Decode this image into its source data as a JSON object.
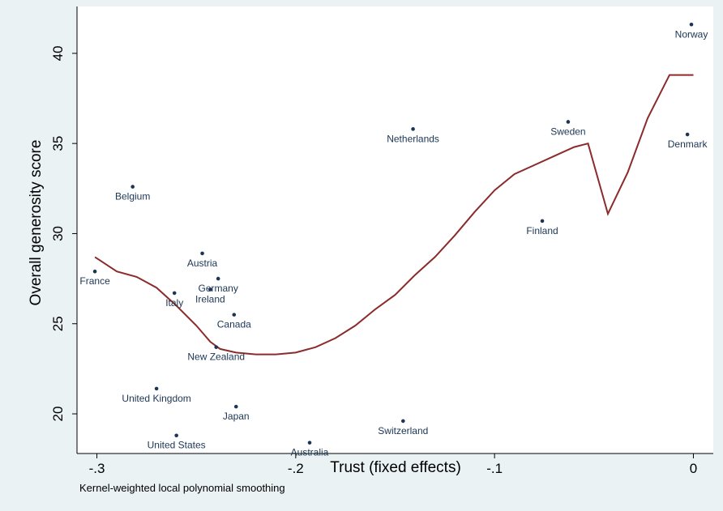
{
  "chart_data": {
    "type": "scatter",
    "xlabel": "Trust (fixed effects)",
    "ylabel": "Overall generosity score",
    "note": "Kernel-weighted local polynomial smoothing",
    "xlim": [
      -0.31,
      0.01
    ],
    "ylim": [
      17.8,
      42.6
    ],
    "xticks": [
      -0.3,
      -0.2,
      -0.1,
      0
    ],
    "xtick_labels": [
      "-.3",
      "-.2",
      "-.1",
      "0"
    ],
    "yticks": [
      20,
      25,
      30,
      35,
      40
    ],
    "ytick_labels": [
      "20",
      "25",
      "30",
      "35",
      "40"
    ],
    "grid": false,
    "colors": {
      "points": "#1b3553",
      "smooth": "#8b2b2b",
      "background": "#eaf2f3",
      "plot": "#ffffff"
    },
    "points": [
      {
        "label": "Norway",
        "x": -0.001,
        "y": 41.6,
        "pos": "below"
      },
      {
        "label": "Sweden",
        "x": -0.063,
        "y": 36.2,
        "pos": "below"
      },
      {
        "label": "Netherlands",
        "x": -0.141,
        "y": 35.8,
        "pos": "below"
      },
      {
        "label": "Denmark",
        "x": -0.003,
        "y": 35.5,
        "pos": "below"
      },
      {
        "label": "Belgium",
        "x": -0.282,
        "y": 32.6,
        "pos": "below"
      },
      {
        "label": "Finland",
        "x": -0.076,
        "y": 30.7,
        "pos": "below"
      },
      {
        "label": "Austria",
        "x": -0.247,
        "y": 28.9,
        "pos": "below"
      },
      {
        "label": "France",
        "x": -0.301,
        "y": 27.9,
        "pos": "below"
      },
      {
        "label": "Germany",
        "x": -0.239,
        "y": 27.5,
        "pos": "below"
      },
      {
        "label": "Ireland",
        "x": -0.243,
        "y": 26.9,
        "pos": "below"
      },
      {
        "label": "Italy",
        "x": -0.261,
        "y": 26.7,
        "pos": "below"
      },
      {
        "label": "Canada",
        "x": -0.231,
        "y": 25.5,
        "pos": "below"
      },
      {
        "label": "New Zealand",
        "x": -0.24,
        "y": 23.7,
        "pos": "below"
      },
      {
        "label": "United Kingdom",
        "x": -0.27,
        "y": 21.4,
        "pos": "below"
      },
      {
        "label": "Japan",
        "x": -0.23,
        "y": 20.4,
        "pos": "below"
      },
      {
        "label": "Switzerland",
        "x": -0.146,
        "y": 19.6,
        "pos": "below"
      },
      {
        "label": "United States",
        "x": -0.26,
        "y": 18.8,
        "pos": "below"
      },
      {
        "label": "Australia",
        "x": -0.193,
        "y": 18.4,
        "pos": "below"
      }
    ],
    "smooth": {
      "x": [
        -0.301,
        -0.29,
        -0.28,
        -0.27,
        -0.26,
        -0.25,
        -0.243,
        -0.238,
        -0.23,
        -0.22,
        -0.21,
        -0.2,
        -0.19,
        -0.18,
        -0.17,
        -0.16,
        -0.15,
        -0.14,
        -0.13,
        -0.12,
        -0.11,
        -0.1,
        -0.09,
        -0.08,
        -0.07,
        -0.06,
        -0.053,
        -0.043,
        -0.033,
        -0.023,
        -0.012,
        0.0
      ],
      "y": [
        28.7,
        27.9,
        27.6,
        27.0,
        26.0,
        24.9,
        24.0,
        23.6,
        23.4,
        23.3,
        23.3,
        23.4,
        23.7,
        24.2,
        24.9,
        25.8,
        26.6,
        27.7,
        28.7,
        29.9,
        31.2,
        32.4,
        33.3,
        33.8,
        34.3,
        34.8,
        35.0,
        31.1,
        33.4,
        36.4,
        38.8,
        38.8
      ]
    }
  }
}
